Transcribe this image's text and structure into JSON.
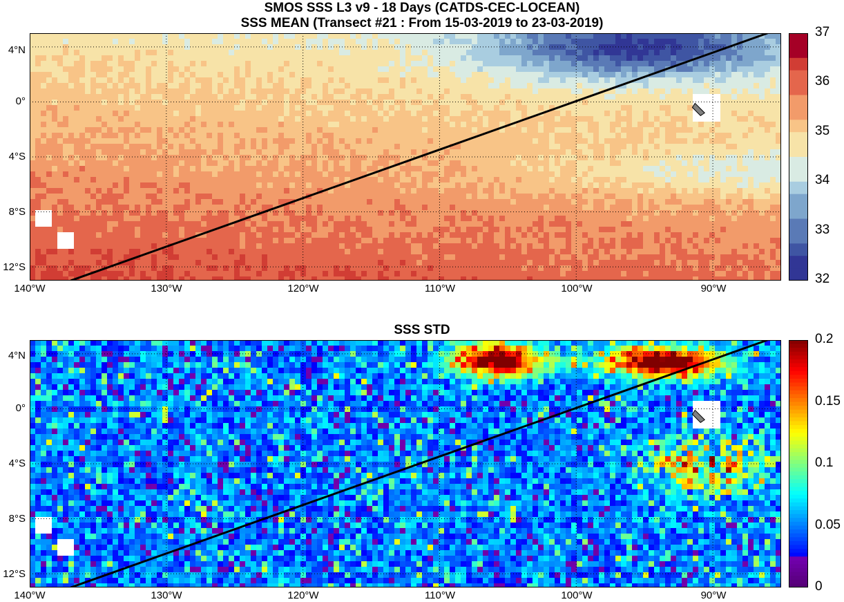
{
  "panel_mean": {
    "title_line1": "SMOS SSS L3 v9 - 18 Days (CATDS-CEC-LOCEAN)",
    "title_line2": "SSS MEAN (Transect #21 : From 15-03-2019 to 23-03-2019)",
    "colorbar_ticks": [
      "37",
      "36",
      "35",
      "34",
      "33",
      "32"
    ],
    "colorbar_values": [
      37,
      36,
      35,
      34,
      33,
      32
    ],
    "colormap": "blue-to-red diverging",
    "data_range": [
      32,
      37
    ]
  },
  "panel_std": {
    "title": "SSS STD",
    "colorbar_ticks": [
      "0.2",
      "0.15",
      "0.1",
      "0.05",
      "0"
    ],
    "colorbar_values": [
      0.2,
      0.15,
      0.1,
      0.05,
      0
    ],
    "colormap": "jet",
    "data_range": [
      0,
      0.2
    ]
  },
  "axes": {
    "lat_labels": [
      "4°N",
      "0°",
      "4°S",
      "8°S",
      "12°S"
    ],
    "lat_values": [
      4,
      0,
      -4,
      -8,
      -12
    ],
    "lon_labels": [
      "140°W",
      "130°W",
      "120°W",
      "110°W",
      "100°W",
      "90°W"
    ],
    "lon_values": [
      -140,
      -130,
      -120,
      -110,
      -100,
      -90
    ],
    "lon_range": [
      -140,
      -85
    ],
    "lat_range": [
      -13,
      5
    ],
    "grid": "dotted"
  },
  "transect": {
    "start": {
      "lon": -137,
      "lat": -13
    },
    "end": {
      "lon": -86,
      "lat": 5
    }
  },
  "colors": {
    "land": "#808080",
    "missing": "#ffffff",
    "transect_line": "#000000"
  }
}
